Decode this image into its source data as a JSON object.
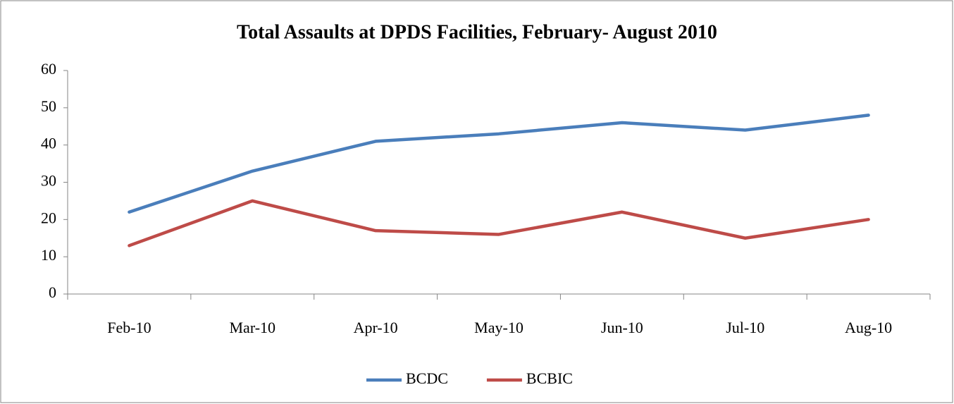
{
  "chart_data": {
    "type": "line",
    "title": "Total Assaults at DPDS Facilities,  February- August 2010",
    "categories": [
      "Feb-10",
      "Mar-10",
      "Apr-10",
      "May-10",
      "Jun-10",
      "Jul-10",
      "Aug-10"
    ],
    "series": [
      {
        "name": "BCDC",
        "color": "#4a7ebb",
        "values": [
          22,
          33,
          41,
          43,
          46,
          44,
          48
        ]
      },
      {
        "name": "BCBIC",
        "color": "#be4b48",
        "values": [
          13,
          25,
          17,
          16,
          22,
          15,
          20
        ]
      }
    ],
    "ylim": [
      0,
      60
    ],
    "yticks": [
      0,
      10,
      20,
      30,
      40,
      50,
      60
    ],
    "grid": false,
    "legend": "bottom"
  }
}
